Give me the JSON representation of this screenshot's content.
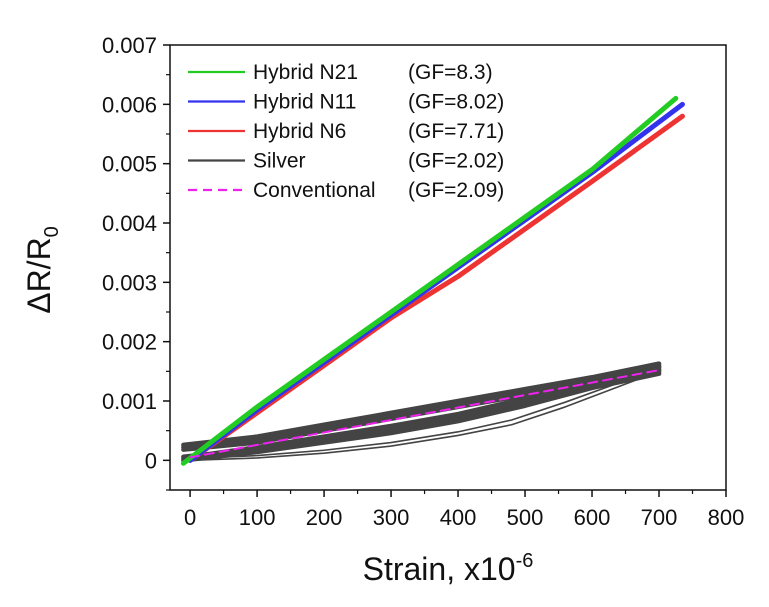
{
  "chart_data": {
    "type": "line",
    "title": "",
    "xlabel": {
      "base": "Strain, x10",
      "sup": "-6"
    },
    "ylabel": {
      "prefix": "ΔR/R",
      "sub": "0"
    },
    "xlim": [
      -30,
      800
    ],
    "ylim": [
      -0.0005,
      0.007
    ],
    "x_ticks": [
      0,
      100,
      200,
      300,
      400,
      500,
      600,
      700,
      800
    ],
    "x_tick_labels": [
      "0",
      "100",
      "200",
      "300",
      "400",
      "500",
      "600",
      "700",
      "800"
    ],
    "y_ticks": [
      0,
      0.001,
      0.002,
      0.003,
      0.004,
      0.005,
      0.006,
      0.007
    ],
    "y_tick_labels": [
      "0",
      "0.001",
      "0.002",
      "0.003",
      "0.004",
      "0.005",
      "0.006",
      "0.007"
    ],
    "grid": false,
    "legend_position": "top-left",
    "series": [
      {
        "name": "Hybrid N21",
        "gf_label": "(GF=8.3)",
        "color": "#22cc22",
        "style": "solid",
        "x": [
          -10,
          100,
          200,
          300,
          400,
          500,
          600,
          725
        ],
        "y": [
          -5e-05,
          0.0009,
          0.0017,
          0.0025,
          0.0033,
          0.0041,
          0.0049,
          0.0061
        ]
      },
      {
        "name": "Hybrid N11",
        "gf_label": "(GF=8.02)",
        "color": "#3333ee",
        "style": "solid",
        "x": [
          0,
          100,
          200,
          300,
          400,
          500,
          600,
          735
        ],
        "y": [
          0.0,
          0.00085,
          0.00165,
          0.00245,
          0.00325,
          0.00405,
          0.00485,
          0.006
        ]
      },
      {
        "name": "Hybrid N6",
        "gf_label": "(GF=7.71)",
        "color": "#ee3333",
        "style": "solid",
        "x": [
          0,
          100,
          200,
          300,
          400,
          500,
          600,
          735
        ],
        "y": [
          0.0,
          0.0008,
          0.0016,
          0.0024,
          0.0031,
          0.0039,
          0.0047,
          0.0058
        ]
      },
      {
        "name": "Silver",
        "gf_label": "(GF=2.02)",
        "color": "#444444",
        "style": "solid",
        "loops": [
          {
            "x": [
              -10,
              100,
              200,
              300,
              400,
              500,
              600,
              700,
              700,
              600,
              500,
              400,
              300,
              200,
              100,
              30,
              -10
            ],
            "y": [
              0.00022,
              0.00035,
              0.00055,
              0.00075,
              0.00095,
              0.00115,
              0.00135,
              0.00158,
              0.00152,
              0.00128,
              0.00098,
              0.00072,
              0.00052,
              0.00035,
              0.00018,
              8e-05,
              3e-05
            ]
          },
          {
            "x": [
              -10,
              100,
              200,
              300,
              400,
              500,
              600,
              700,
              700,
              600,
              500,
              400,
              300,
              200,
              100,
              30,
              -10
            ],
            "y": [
              0.00018,
              0.0003,
              0.0005,
              0.0007,
              0.0009,
              0.0011,
              0.0013,
              0.00152,
              0.00146,
              0.00122,
              0.00092,
              0.00066,
              0.00046,
              0.0003,
              0.00014,
              5e-05,
              0.0
            ]
          },
          {
            "x": [
              -10,
              100,
              200,
              300,
              400,
              500,
              600,
              700,
              700,
              600,
              500,
              400,
              300,
              200,
              100,
              30,
              -10
            ],
            "y": [
              0.00026,
              0.0004,
              0.0006,
              0.0008,
              0.001,
              0.0012,
              0.0014,
              0.00163,
              0.00157,
              0.00134,
              0.00104,
              0.00078,
              0.00058,
              0.0004,
              0.00022,
              0.00011,
              6e-05
            ]
          },
          {
            "x": [
              0,
              100,
              200,
              300,
              400,
              480,
              560,
              700
            ],
            "y": [
              0.0,
              4e-05,
              0.00012,
              0.00024,
              0.00042,
              0.0006,
              0.0009,
              0.0015
            ]
          },
          {
            "x": [
              0,
              100,
              200,
              300,
              400,
              480,
              560,
              700
            ],
            "y": [
              3e-05,
              8e-05,
              0.00017,
              0.0003,
              0.00048,
              0.00068,
              0.00098,
              0.00155
            ]
          }
        ]
      },
      {
        "name": "Conventional",
        "gf_label": "(GF=2.09)",
        "color": "#ee22ee",
        "style": "dashed",
        "x": [
          0,
          700
        ],
        "y": [
          5e-05,
          0.00152
        ]
      }
    ]
  }
}
